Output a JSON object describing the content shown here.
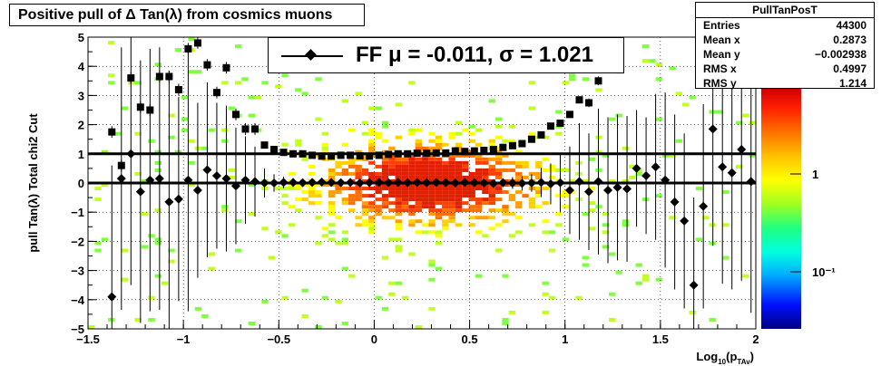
{
  "header": {
    "title": "Positive pull of Δ Tan(λ) from cosmics muons"
  },
  "stats": {
    "title": "PullTanPosT",
    "rows": [
      {
        "label": "Entries",
        "value": "44300"
      },
      {
        "label": "Mean x",
        "value": "0.2873"
      },
      {
        "label": "Mean y",
        "value": "−0.002938"
      },
      {
        "label": "RMS x",
        "value": "0.4997"
      },
      {
        "label": "RMS y",
        "value": "1.214"
      }
    ]
  },
  "legend": {
    "text": "FF μ = -0.011, σ =   1.021"
  },
  "chart_data": {
    "type": "scatter",
    "ylabel": "pull Tan(λ)  Total chi2 Cut",
    "xlabel_main": "Log",
    "xlabel_sub": "10",
    "xlabel_mid": "(p",
    "xlabel_sub2": "TAv",
    "xlabel_end": ")",
    "xlim": [
      -1.5,
      2
    ],
    "ylim": [
      -5,
      5
    ],
    "x_ticks": [
      -1.5,
      -1,
      -0.5,
      0,
      0.5,
      1,
      1.5,
      2
    ],
    "x_tick_labels": [
      "−1.5",
      "−1",
      "−0.5",
      "0",
      "0.5",
      "1",
      "1.5",
      "2"
    ],
    "y_ticks": [
      -5,
      -4,
      -3,
      -2,
      -1,
      0,
      1,
      2,
      3,
      4,
      5
    ],
    "y_tick_labels": [
      "−5",
      "−4",
      "−3",
      "−2",
      "−1",
      "0",
      "1",
      "2",
      "3",
      "4",
      "5"
    ],
    "grid": true,
    "colorbar": {
      "labels": [
        "1",
        "10⁻¹"
      ],
      "colors": [
        "#00007f",
        "#0010ff",
        "#00a8ff",
        "#00ffe0",
        "#20ff80",
        "#a0ff20",
        "#ffff00",
        "#ffc000",
        "#ff7000",
        "#ff2000",
        "#d00000"
      ]
    },
    "reference_lines": [
      0,
      1
    ],
    "series": [
      {
        "name": "mean",
        "marker": "diamond",
        "x": [
          -1.375,
          -1.325,
          -1.275,
          -1.225,
          -1.175,
          -1.125,
          -1.075,
          -1.025,
          -0.975,
          -0.925,
          -0.875,
          -0.825,
          -0.775,
          -0.725,
          -0.675,
          -0.625,
          -0.575,
          -0.525,
          -0.475,
          -0.425,
          -0.375,
          -0.325,
          -0.275,
          -0.225,
          -0.175,
          -0.125,
          -0.075,
          -0.025,
          0.025,
          0.075,
          0.125,
          0.175,
          0.225,
          0.275,
          0.325,
          0.375,
          0.425,
          0.475,
          0.525,
          0.575,
          0.625,
          0.675,
          0.725,
          0.775,
          0.825,
          0.875,
          0.925,
          0.975,
          1.025,
          1.075,
          1.125,
          1.175,
          1.225,
          1.275,
          1.325,
          1.375,
          1.425,
          1.475,
          1.525,
          1.575,
          1.625,
          1.675,
          1.725,
          1.775,
          1.825,
          1.875,
          1.925,
          1.975
        ],
        "y": [
          -3.9,
          0.15,
          1.0,
          -0.3,
          0.1,
          0.15,
          -0.65,
          -0.55,
          0.1,
          -0.25,
          0.45,
          0.25,
          0.15,
          -0.1,
          0.1,
          0.05,
          0.0,
          0.0,
          0.02,
          0.02,
          0.01,
          0.02,
          0.03,
          0.02,
          0.01,
          0.02,
          0.0,
          0.01,
          0.02,
          0.01,
          0.02,
          0.01,
          0.02,
          0.01,
          0.02,
          0.01,
          0.0,
          0.02,
          0.01,
          0.0,
          -0.02,
          0.01,
          0.0,
          -0.01,
          0.0,
          0.02,
          -0.03,
          0.01,
          -0.25,
          0.05,
          -0.3,
          0.05,
          -0.25,
          -0.15,
          -0.2,
          0.5,
          0.25,
          0.55,
          0.1,
          -0.65,
          -1.3,
          -3.5,
          -0.8,
          1.85,
          0.55,
          0.35,
          1.15,
          0.05
        ],
        "err": [
          4.5,
          4.5,
          4.5,
          4.5,
          4.5,
          4.5,
          4.5,
          3.5,
          4.5,
          3.0,
          3.0,
          2.5,
          2.5,
          2.0,
          1.5,
          1.2,
          0.5,
          0.3,
          0.2,
          0.15,
          0.12,
          0.1,
          0.1,
          0.1,
          0.1,
          0.1,
          0.1,
          0.1,
          0.1,
          0.1,
          0.1,
          0.1,
          0.1,
          0.1,
          0.1,
          0.1,
          0.1,
          0.1,
          0.1,
          0.1,
          0.12,
          0.15,
          0.2,
          0.25,
          0.3,
          0.5,
          0.7,
          1.0,
          1.5,
          2.0,
          2.0,
          2.5,
          2.5,
          2.5,
          2.5,
          2.0,
          2.0,
          2.5,
          3.0,
          3.0,
          3.0,
          3.0,
          3.5,
          4.0,
          4.0,
          4.0,
          4.5,
          4.5
        ]
      },
      {
        "name": "sigma",
        "marker": "square",
        "x": [
          -1.375,
          -1.325,
          -1.275,
          -1.225,
          -1.175,
          -1.125,
          -1.075,
          -1.025,
          -0.975,
          -0.925,
          -0.875,
          -0.825,
          -0.775,
          -0.725,
          -0.675,
          -0.625,
          -0.575,
          -0.525,
          -0.475,
          -0.425,
          -0.375,
          -0.325,
          -0.275,
          -0.225,
          -0.175,
          -0.125,
          -0.075,
          -0.025,
          0.025,
          0.075,
          0.125,
          0.175,
          0.225,
          0.275,
          0.325,
          0.375,
          0.425,
          0.475,
          0.525,
          0.575,
          0.625,
          0.675,
          0.725,
          0.775,
          0.825,
          0.875,
          0.925,
          0.975,
          1.025,
          1.075,
          1.125,
          1.175
        ],
        "y": [
          1.75,
          0.6,
          3.6,
          2.6,
          2.5,
          3.65,
          3.65,
          3.2,
          4.6,
          4.8,
          4.05,
          3.1,
          3.95,
          2.35,
          1.85,
          1.85,
          1.3,
          1.15,
          1.05,
          1.0,
          1.0,
          0.95,
          0.92,
          0.92,
          0.95,
          0.95,
          0.93,
          0.92,
          0.95,
          0.98,
          1.0,
          1.0,
          1.02,
          1.02,
          1.03,
          1.03,
          1.1,
          1.08,
          1.1,
          1.12,
          1.15,
          1.22,
          1.28,
          1.35,
          1.5,
          1.65,
          1.95,
          2.05,
          2.35,
          2.85,
          2.75,
          3.5
        ],
        "err": [
          0.2,
          0.2,
          0.2,
          0.2,
          0.2,
          0.2,
          0.2,
          0.2,
          0.2,
          0.2,
          0.2,
          0.2,
          0.2,
          0.2,
          0.2,
          0.2,
          0.1,
          0.05,
          0.05,
          0.05,
          0.05,
          0.05,
          0.05,
          0.05,
          0.05,
          0.05,
          0.05,
          0.05,
          0.05,
          0.05,
          0.05,
          0.05,
          0.05,
          0.05,
          0.05,
          0.05,
          0.05,
          0.05,
          0.05,
          0.05,
          0.05,
          0.05,
          0.05,
          0.05,
          0.05,
          0.05,
          0.1,
          0.1,
          0.1,
          0.1,
          0.15,
          0.15
        ]
      }
    ]
  }
}
